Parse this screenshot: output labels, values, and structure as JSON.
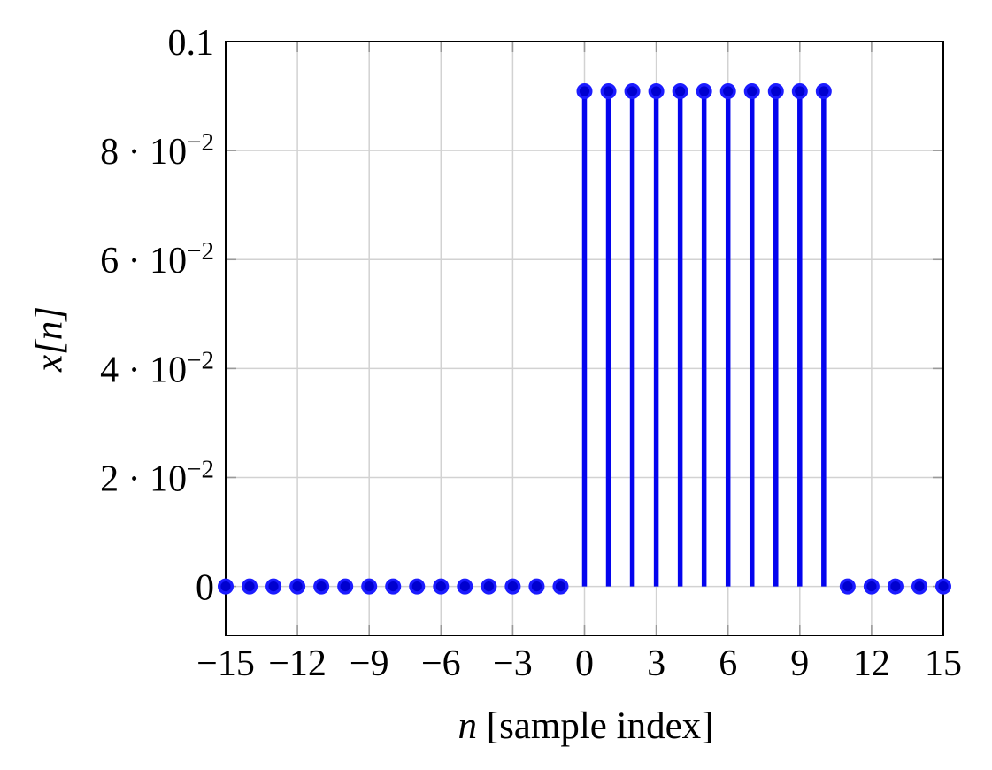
{
  "figure": {
    "background": "#ffffff"
  },
  "chart_data": {
    "type": "scatter",
    "variant": "stem",
    "title": "",
    "xlabel_math": "n",
    "xlabel_rest": " [sample index]",
    "ylabel_math": "x[n]",
    "xlim": [
      -15,
      15
    ],
    "ylim": [
      -0.009,
      0.1
    ],
    "grid": true,
    "x": [
      -15,
      -14,
      -13,
      -12,
      -11,
      -10,
      -9,
      -8,
      -7,
      -6,
      -5,
      -4,
      -3,
      -2,
      -1,
      0,
      1,
      2,
      3,
      4,
      5,
      6,
      7,
      8,
      9,
      10,
      11,
      12,
      13,
      14,
      15
    ],
    "values": [
      0,
      0,
      0,
      0,
      0,
      0,
      0,
      0,
      0,
      0,
      0,
      0,
      0,
      0,
      0,
      0.0909,
      0.0909,
      0.0909,
      0.0909,
      0.0909,
      0.0909,
      0.0909,
      0.0909,
      0.0909,
      0.0909,
      0.0909,
      0,
      0,
      0,
      0,
      0
    ],
    "x_ticks": [
      {
        "v": -15,
        "label": "−15"
      },
      {
        "v": -12,
        "label": "−12"
      },
      {
        "v": -9,
        "label": "−9"
      },
      {
        "v": -6,
        "label": "−6"
      },
      {
        "v": -3,
        "label": "−3"
      },
      {
        "v": 0,
        "label": "0"
      },
      {
        "v": 3,
        "label": "3"
      },
      {
        "v": 6,
        "label": "6"
      },
      {
        "v": 9,
        "label": "9"
      },
      {
        "v": 12,
        "label": "12"
      },
      {
        "v": 15,
        "label": "15"
      }
    ],
    "y_ticks": [
      {
        "v": 0,
        "base": "0"
      },
      {
        "v": 0.02,
        "base": "2 · 10",
        "sup": "−2"
      },
      {
        "v": 0.04,
        "base": "4 · 10",
        "sup": "−2"
      },
      {
        "v": 0.06,
        "base": "6 · 10",
        "sup": "−2"
      },
      {
        "v": 0.08,
        "base": "8 · 10",
        "sup": "−2"
      },
      {
        "v": 0.1,
        "base": "0.1"
      }
    ],
    "colors": {
      "stem": "#0404ee",
      "marker_fill": "#0000cf",
      "marker_stroke": "#1c1cff",
      "grid": "#d2d2d2",
      "tick": "#999999",
      "frame": "#000000",
      "text": "#000000"
    }
  }
}
